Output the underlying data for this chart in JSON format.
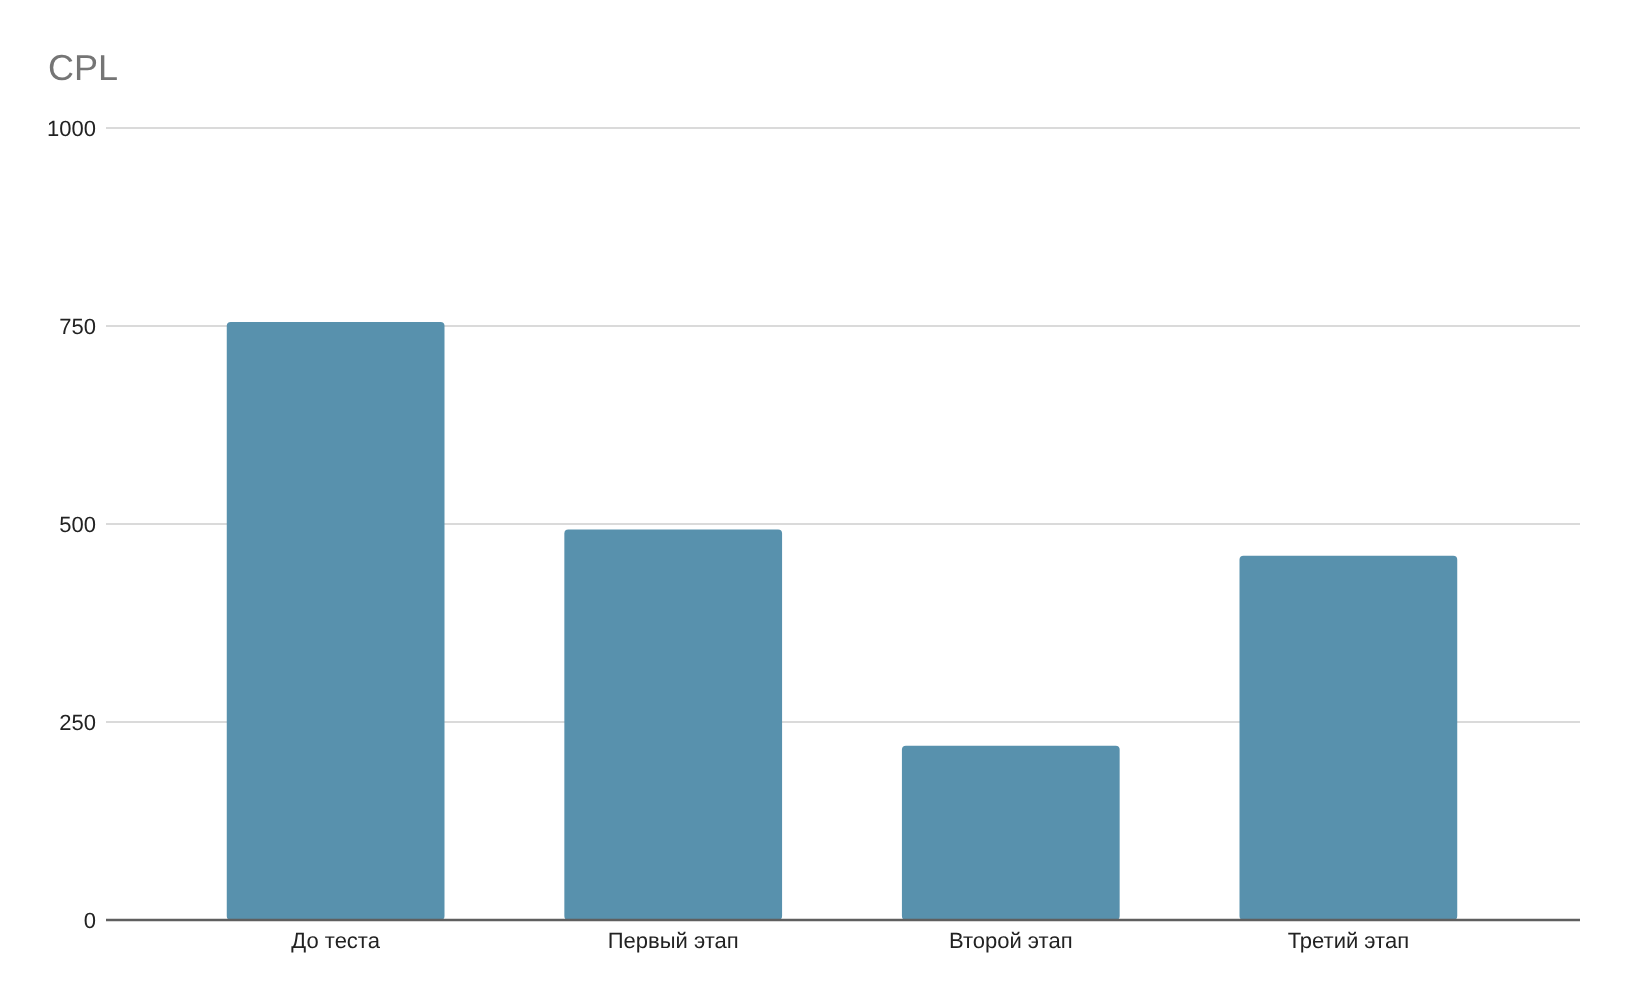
{
  "chart_data": {
    "type": "bar",
    "title": "CPL",
    "categories": [
      "До теста",
      "Первый этап",
      "Второй этап",
      "Третий этап"
    ],
    "values": [
      755,
      493,
      220,
      460
    ],
    "color": "#5891ad",
    "ylim": [
      0,
      1000
    ],
    "yticks": [
      0,
      250,
      500,
      750,
      1000
    ],
    "grid": "y"
  }
}
